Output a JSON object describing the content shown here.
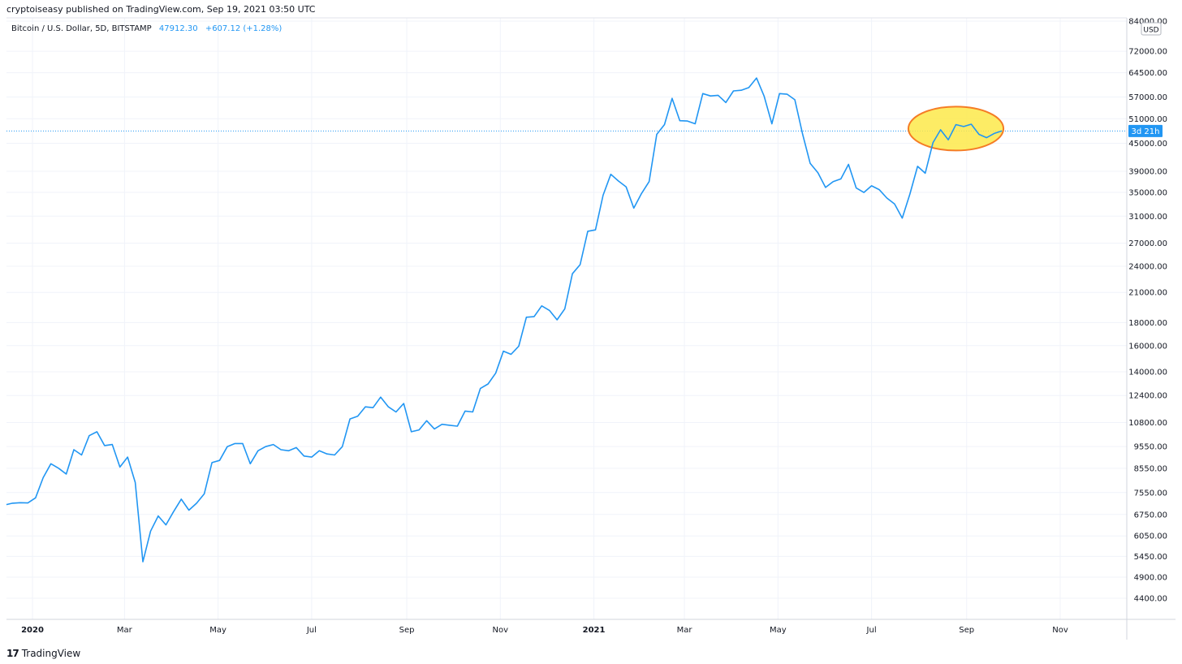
{
  "header": {
    "published_line": "cryptoiseasy published on TradingView.com, Sep 19, 2021 03:50 UTC"
  },
  "legend": {
    "symbol": "Bitcoin / U.S. Dollar, 5D, BITSTAMP",
    "last_value": "47912.30",
    "change": "+607.12 (+1.28%)"
  },
  "price_axis": {
    "currency": "USD",
    "countdown_label": "3d 21h"
  },
  "footer": {
    "logo_mark": "17",
    "brand": "TradingView"
  },
  "colors": {
    "line": "#2196f3",
    "highlight_fill": "#fde94a",
    "highlight_stroke": "#f57c25",
    "grid": "#f0f3fa"
  },
  "chart_data": {
    "type": "line",
    "scale": "log",
    "ylim": [
      4100,
      84000
    ],
    "y_ticks": [
      "84000.00",
      "72000.00",
      "64500.00",
      "57000.00",
      "51000.00",
      "45000.00",
      "39000.00",
      "35000.00",
      "31000.00",
      "27000.00",
      "24000.00",
      "21000.00",
      "18000.00",
      "16000.00",
      "14000.00",
      "12400.00",
      "10800.00",
      "9550.00",
      "8550.00",
      "7550.00",
      "6750.00",
      "6050.00",
      "5450.00",
      "4900.00",
      "4400.00"
    ],
    "x_ticks": [
      {
        "label": "2020",
        "date": "2020-01-01",
        "bold": true
      },
      {
        "label": "Mar",
        "date": "2020-03-01",
        "bold": false
      },
      {
        "label": "May",
        "date": "2020-05-01",
        "bold": false
      },
      {
        "label": "Jul",
        "date": "2020-07-01",
        "bold": false
      },
      {
        "label": "Sep",
        "date": "2020-09-01",
        "bold": false
      },
      {
        "label": "Nov",
        "date": "2020-11-01",
        "bold": false
      },
      {
        "label": "2021",
        "date": "2021-01-01",
        "bold": true
      },
      {
        "label": "Mar",
        "date": "2021-03-01",
        "bold": false
      },
      {
        "label": "May",
        "date": "2021-05-01",
        "bold": false
      },
      {
        "label": "Jul",
        "date": "2021-07-01",
        "bold": false
      },
      {
        "label": "Sep",
        "date": "2021-09-01",
        "bold": false
      },
      {
        "label": "Nov",
        "date": "2021-11-01",
        "bold": false
      }
    ],
    "last_close": 47912.3,
    "annotation": {
      "type": "ellipse",
      "x_start": "2021-07-25",
      "x_end": "2021-09-25",
      "y_center": 48500
    },
    "series": [
      {
        "points": [
          [
            "2019-12-15",
            7100
          ],
          [
            "2019-12-19",
            7150
          ],
          [
            "2019-12-24",
            7170
          ],
          [
            "2019-12-29",
            7160
          ],
          [
            "2020-01-03",
            7350
          ],
          [
            "2020-01-08",
            8150
          ],
          [
            "2020-01-13",
            8750
          ],
          [
            "2020-01-18",
            8550
          ],
          [
            "2020-01-23",
            8300
          ],
          [
            "2020-01-28",
            9400
          ],
          [
            "2020-02-02",
            9150
          ],
          [
            "2020-02-07",
            10100
          ],
          [
            "2020-02-12",
            10300
          ],
          [
            "2020-02-17",
            9600
          ],
          [
            "2020-02-22",
            9650
          ],
          [
            "2020-02-27",
            8600
          ],
          [
            "2020-03-03",
            9050
          ],
          [
            "2020-03-08",
            7950
          ],
          [
            "2020-03-13",
            5300
          ],
          [
            "2020-03-18",
            6200
          ],
          [
            "2020-03-23",
            6700
          ],
          [
            "2020-03-28",
            6400
          ],
          [
            "2020-04-02",
            6850
          ],
          [
            "2020-04-07",
            7300
          ],
          [
            "2020-04-12",
            6900
          ],
          [
            "2020-04-17",
            7150
          ],
          [
            "2020-04-22",
            7500
          ],
          [
            "2020-04-27",
            8800
          ],
          [
            "2020-05-02",
            8900
          ],
          [
            "2020-05-07",
            9550
          ],
          [
            "2020-05-12",
            9700
          ],
          [
            "2020-05-17",
            9700
          ],
          [
            "2020-05-22",
            8750
          ],
          [
            "2020-05-27",
            9350
          ],
          [
            "2020-06-01",
            9550
          ],
          [
            "2020-06-06",
            9650
          ],
          [
            "2020-06-11",
            9400
          ],
          [
            "2020-06-16",
            9350
          ],
          [
            "2020-06-21",
            9500
          ],
          [
            "2020-06-26",
            9100
          ],
          [
            "2020-07-01",
            9050
          ],
          [
            "2020-07-06",
            9350
          ],
          [
            "2020-07-11",
            9200
          ],
          [
            "2020-07-16",
            9150
          ],
          [
            "2020-07-21",
            9550
          ],
          [
            "2020-07-26",
            11000
          ],
          [
            "2020-07-31",
            11150
          ],
          [
            "2020-08-05",
            11700
          ],
          [
            "2020-08-10",
            11650
          ],
          [
            "2020-08-15",
            12300
          ],
          [
            "2020-08-20",
            11700
          ],
          [
            "2020-08-25",
            11400
          ],
          [
            "2020-08-30",
            11900
          ],
          [
            "2020-09-04",
            10300
          ],
          [
            "2020-09-09",
            10400
          ],
          [
            "2020-09-14",
            10900
          ],
          [
            "2020-09-19",
            10450
          ],
          [
            "2020-09-24",
            10700
          ],
          [
            "2020-09-29",
            10650
          ],
          [
            "2020-10-04",
            10600
          ],
          [
            "2020-10-09",
            11450
          ],
          [
            "2020-10-14",
            11400
          ],
          [
            "2020-10-19",
            12850
          ],
          [
            "2020-10-24",
            13150
          ],
          [
            "2020-10-29",
            13900
          ],
          [
            "2020-11-03",
            15550
          ],
          [
            "2020-11-08",
            15300
          ],
          [
            "2020-11-13",
            15950
          ],
          [
            "2020-11-18",
            18500
          ],
          [
            "2020-11-23",
            18550
          ],
          [
            "2020-11-28",
            19600
          ],
          [
            "2020-12-03",
            19150
          ],
          [
            "2020-12-08",
            18250
          ],
          [
            "2020-12-13",
            19300
          ],
          [
            "2020-12-18",
            23100
          ],
          [
            "2020-12-23",
            24200
          ],
          [
            "2020-12-28",
            28700
          ],
          [
            "2021-01-02",
            28900
          ],
          [
            "2021-01-07",
            34500
          ],
          [
            "2021-01-12",
            38400
          ],
          [
            "2021-01-17",
            37100
          ],
          [
            "2021-01-22",
            36000
          ],
          [
            "2021-01-27",
            32300
          ],
          [
            "2021-02-01",
            34800
          ],
          [
            "2021-02-06",
            37000
          ],
          [
            "2021-02-11",
            47100
          ],
          [
            "2021-02-16",
            49500
          ],
          [
            "2021-02-21",
            56600
          ],
          [
            "2021-02-26",
            50500
          ],
          [
            "2021-03-03",
            50400
          ],
          [
            "2021-03-08",
            49700
          ],
          [
            "2021-03-13",
            58000
          ],
          [
            "2021-03-18",
            57300
          ],
          [
            "2021-03-23",
            57500
          ],
          [
            "2021-03-28",
            55400
          ],
          [
            "2021-04-02",
            58800
          ],
          [
            "2021-04-07",
            59000
          ],
          [
            "2021-04-12",
            59800
          ],
          [
            "2021-04-17",
            62800
          ],
          [
            "2021-04-22",
            57200
          ],
          [
            "2021-04-27",
            49700
          ],
          [
            "2021-05-02",
            58000
          ],
          [
            "2021-05-07",
            57800
          ],
          [
            "2021-05-12",
            56200
          ],
          [
            "2021-05-17",
            47200
          ],
          [
            "2021-05-22",
            40600
          ],
          [
            "2021-05-27",
            38700
          ],
          [
            "2021-06-01",
            35900
          ],
          [
            "2021-06-06",
            37000
          ],
          [
            "2021-06-11",
            37500
          ],
          [
            "2021-06-16",
            40400
          ],
          [
            "2021-06-21",
            35800
          ],
          [
            "2021-06-26",
            35000
          ],
          [
            "2021-07-01",
            36200
          ],
          [
            "2021-07-06",
            35500
          ],
          [
            "2021-07-11",
            34000
          ],
          [
            "2021-07-16",
            33000
          ],
          [
            "2021-07-21",
            30700
          ],
          [
            "2021-07-26",
            34700
          ],
          [
            "2021-07-31",
            40000
          ],
          [
            "2021-08-05",
            38600
          ],
          [
            "2021-08-10",
            45100
          ],
          [
            "2021-08-15",
            48200
          ],
          [
            "2021-08-20",
            45800
          ],
          [
            "2021-08-25",
            49500
          ],
          [
            "2021-08-30",
            49000
          ],
          [
            "2021-09-04",
            49600
          ],
          [
            "2021-09-09",
            47100
          ],
          [
            "2021-09-14",
            46300
          ],
          [
            "2021-09-19",
            47300
          ],
          [
            "2021-09-24",
            47912.3
          ]
        ]
      }
    ]
  }
}
